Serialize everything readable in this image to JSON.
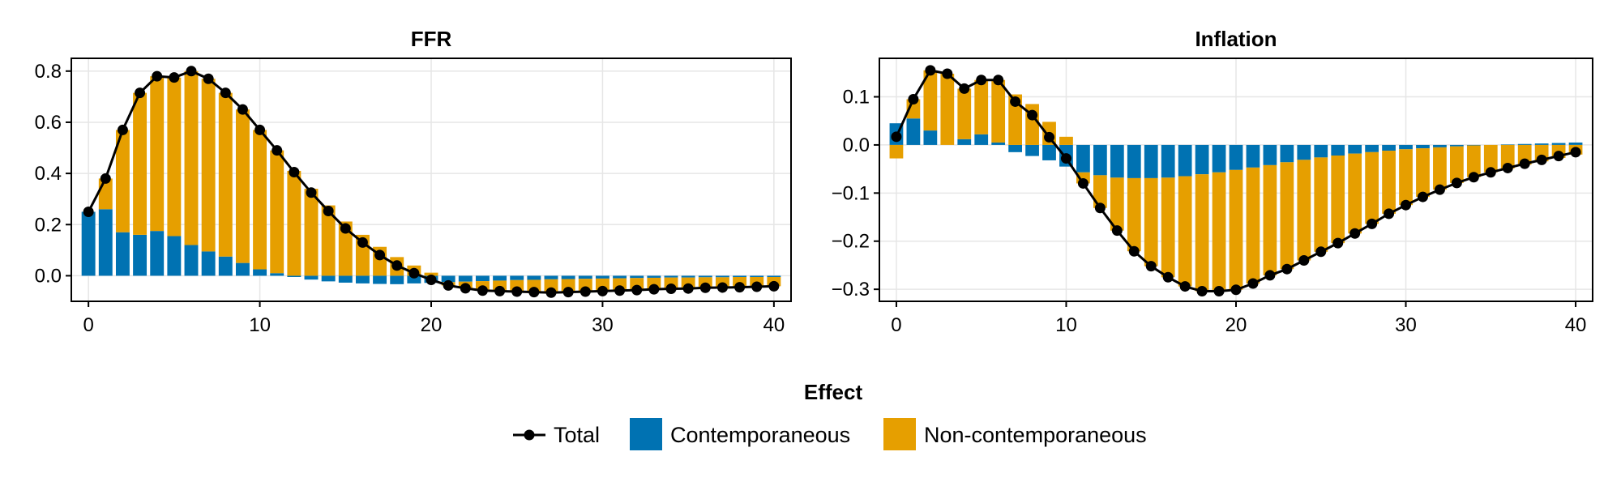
{
  "chart_data": [
    {
      "type": "bar",
      "stacked": true,
      "title": "FFR",
      "xlabel": "",
      "ylabel": "",
      "xlim": [
        -1,
        41
      ],
      "ylim": [
        -0.1,
        0.85
      ],
      "xticks": [
        0,
        10,
        20,
        30,
        40
      ],
      "yticks": [
        0.0,
        0.2,
        0.4,
        0.6,
        0.8
      ],
      "ytick_labels": [
        "0.0",
        "0.2",
        "0.4",
        "0.6",
        "0.8"
      ],
      "grid": true,
      "x": [
        0,
        1,
        2,
        3,
        4,
        5,
        6,
        7,
        8,
        9,
        10,
        11,
        12,
        13,
        14,
        15,
        16,
        17,
        18,
        19,
        20,
        21,
        22,
        23,
        24,
        25,
        26,
        27,
        28,
        29,
        30,
        31,
        32,
        33,
        34,
        35,
        36,
        37,
        38,
        39,
        40
      ],
      "series": [
        {
          "name": "Contemporaneous",
          "type": "bar",
          "values": [
            0.25,
            0.26,
            0.17,
            0.16,
            0.175,
            0.155,
            0.12,
            0.095,
            0.075,
            0.05,
            0.025,
            0.01,
            -0.005,
            -0.015,
            -0.022,
            -0.027,
            -0.03,
            -0.032,
            -0.033,
            -0.03,
            -0.028,
            -0.025,
            -0.023,
            -0.021,
            -0.019,
            -0.017,
            -0.016,
            -0.014,
            -0.013,
            -0.012,
            -0.011,
            -0.01,
            -0.009,
            -0.008,
            -0.007,
            -0.007,
            -0.006,
            -0.006,
            -0.005,
            -0.005,
            -0.005
          ]
        },
        {
          "name": "Non-contemporaneous",
          "type": "bar",
          "values": [
            0.0,
            0.12,
            0.4,
            0.555,
            0.605,
            0.62,
            0.68,
            0.675,
            0.64,
            0.6,
            0.545,
            0.48,
            0.41,
            0.34,
            0.275,
            0.212,
            0.16,
            0.113,
            0.073,
            0.04,
            0.012,
            -0.013,
            -0.026,
            -0.037,
            -0.041,
            -0.045,
            -0.048,
            -0.052,
            -0.051,
            -0.05,
            -0.049,
            -0.048,
            -0.047,
            -0.045,
            -0.044,
            -0.043,
            -0.041,
            -0.04,
            -0.04,
            -0.038,
            -0.036
          ]
        },
        {
          "name": "Total",
          "type": "line",
          "values": [
            0.25,
            0.38,
            0.57,
            0.715,
            0.78,
            0.775,
            0.8,
            0.77,
            0.715,
            0.65,
            0.57,
            0.49,
            0.405,
            0.325,
            0.253,
            0.185,
            0.13,
            0.081,
            0.04,
            0.01,
            -0.016,
            -0.038,
            -0.049,
            -0.058,
            -0.06,
            -0.062,
            -0.064,
            -0.066,
            -0.064,
            -0.062,
            -0.06,
            -0.058,
            -0.056,
            -0.053,
            -0.051,
            -0.05,
            -0.047,
            -0.046,
            -0.045,
            -0.043,
            -0.041
          ]
        }
      ]
    },
    {
      "type": "bar",
      "stacked": true,
      "title": "Inflation",
      "xlabel": "",
      "ylabel": "",
      "xlim": [
        -1,
        41
      ],
      "ylim": [
        -0.325,
        0.18
      ],
      "xticks": [
        0,
        10,
        20,
        30,
        40
      ],
      "yticks": [
        0.1,
        0.0,
        -0.1,
        -0.2,
        -0.3
      ],
      "ytick_labels": [
        "0.1",
        "0.0",
        "−0.1",
        "−0.2",
        "−0.3"
      ],
      "grid": true,
      "x": [
        0,
        1,
        2,
        3,
        4,
        5,
        6,
        7,
        8,
        9,
        10,
        11,
        12,
        13,
        14,
        15,
        16,
        17,
        18,
        19,
        20,
        21,
        22,
        23,
        24,
        25,
        26,
        27,
        28,
        29,
        30,
        31,
        32,
        33,
        34,
        35,
        36,
        37,
        38,
        39,
        40
      ],
      "series": [
        {
          "name": "Contemporaneous",
          "type": "bar",
          "values": [
            0.045,
            0.055,
            0.03,
            0.0,
            0.012,
            0.022,
            0.005,
            -0.015,
            -0.023,
            -0.032,
            -0.045,
            -0.057,
            -0.063,
            -0.068,
            -0.069,
            -0.069,
            -0.068,
            -0.065,
            -0.061,
            -0.057,
            -0.052,
            -0.047,
            -0.042,
            -0.036,
            -0.031,
            -0.026,
            -0.022,
            -0.018,
            -0.015,
            -0.012,
            -0.009,
            -0.007,
            -0.005,
            -0.003,
            -0.001,
            0.0,
            0.001,
            0.002,
            0.003,
            0.004,
            0.005
          ]
        },
        {
          "name": "Non-contemporaneous",
          "type": "bar",
          "values": [
            -0.028,
            0.04,
            0.125,
            0.148,
            0.105,
            0.113,
            0.13,
            0.105,
            0.085,
            0.048,
            0.017,
            -0.023,
            -0.068,
            -0.11,
            -0.152,
            -0.183,
            -0.207,
            -0.229,
            -0.243,
            -0.247,
            -0.249,
            -0.241,
            -0.229,
            -0.222,
            -0.209,
            -0.196,
            -0.182,
            -0.166,
            -0.149,
            -0.131,
            -0.116,
            -0.101,
            -0.088,
            -0.076,
            -0.066,
            -0.057,
            -0.049,
            -0.041,
            -0.034,
            -0.027,
            -0.02
          ]
        },
        {
          "name": "Total",
          "type": "line",
          "values": [
            0.017,
            0.095,
            0.155,
            0.148,
            0.117,
            0.135,
            0.135,
            0.09,
            0.062,
            0.016,
            -0.028,
            -0.08,
            -0.131,
            -0.178,
            -0.221,
            -0.252,
            -0.275,
            -0.294,
            -0.304,
            -0.304,
            -0.301,
            -0.288,
            -0.271,
            -0.258,
            -0.24,
            -0.222,
            -0.204,
            -0.184,
            -0.164,
            -0.143,
            -0.125,
            -0.108,
            -0.093,
            -0.079,
            -0.067,
            -0.057,
            -0.048,
            -0.039,
            -0.031,
            -0.023,
            -0.015
          ]
        }
      ]
    }
  ],
  "legend": {
    "title": "Effect",
    "placement": "bottom-center",
    "entries": [
      {
        "label": "Total",
        "kind": "line-marker",
        "color": "#000000"
      },
      {
        "label": "Contemporaneous",
        "kind": "bar",
        "color": "#0072b2"
      },
      {
        "label": "Non-contemporaneous",
        "kind": "bar",
        "color": "#e69f00"
      }
    ]
  },
  "colors": {
    "contemporaneous": "#0072b2",
    "non_contemporaneous": "#e69f00",
    "total": "#000000",
    "grid": "#e6e6e6"
  }
}
